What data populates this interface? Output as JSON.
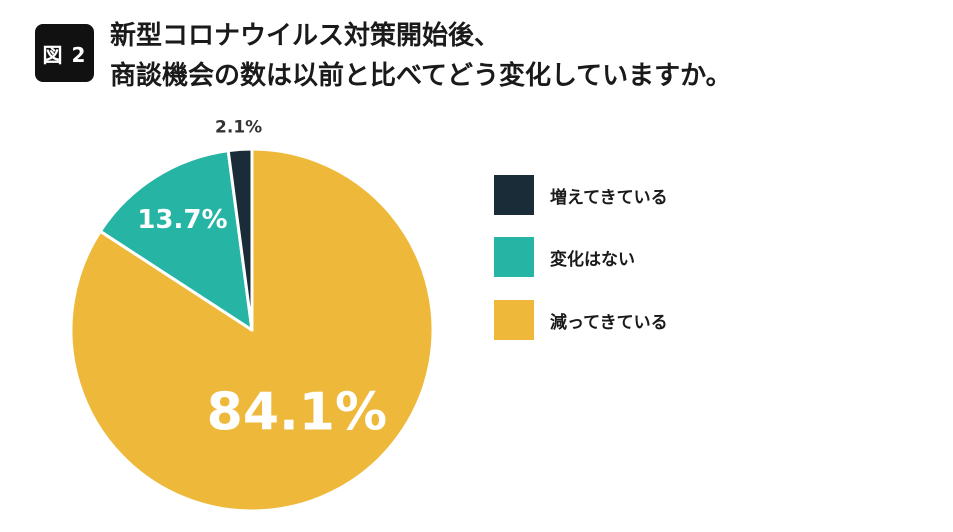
{
  "figure": {
    "badge": "図 2",
    "title_lines": [
      "新型コロナウイルス対策開始後、",
      "商談機会の数は以前と比べてどう変化していますか。"
    ]
  },
  "colors": {
    "increasing": "#1b2c39",
    "unchanged": "#26b5a5",
    "decreasing": "#eeb93a",
    "badge_bg": "#111111"
  },
  "chart_data": {
    "type": "pie",
    "title": "新型コロナウイルス対策開始後、商談機会の数は以前と比べてどう変化していますか。",
    "start": "12 o'clock, clockwise",
    "slices": [
      {
        "label": "減ってきている",
        "value": 84.1,
        "display": "84.1%",
        "color": "#eeb93a"
      },
      {
        "label": "変化はない",
        "value": 13.7,
        "display": "13.7%",
        "color": "#26b5a5"
      },
      {
        "label": "増えてきている",
        "value": 2.1,
        "display": "2.1%",
        "color": "#1b2c39"
      }
    ],
    "legend": {
      "placement": "right",
      "entries": [
        "増えてきている",
        "変化はない",
        "減ってきている"
      ]
    }
  }
}
